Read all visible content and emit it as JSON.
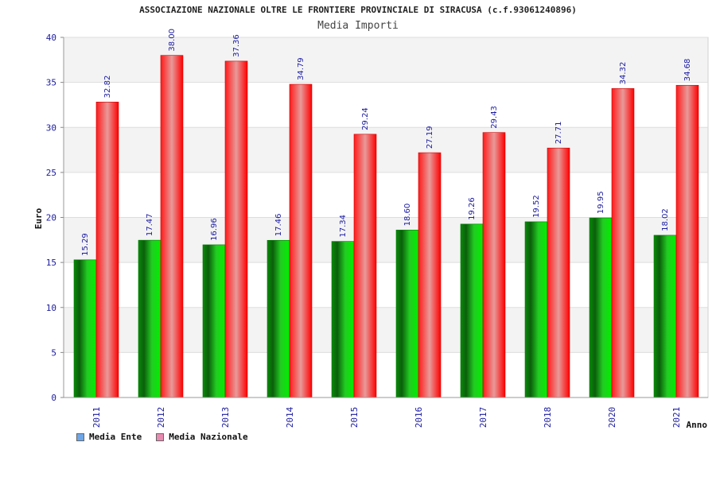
{
  "chart_data": {
    "type": "bar",
    "title": "ASSOCIAZIONE NAZIONALE OLTRE LE FRONTIERE PROVINCIALE DI SIRACUSA (c.f.93061240896)",
    "subtitle": "Media Importi",
    "xlabel": "Anno",
    "ylabel": "Euro",
    "ylim": [
      0,
      40
    ],
    "yticks": [
      0,
      5,
      10,
      15,
      20,
      25,
      30,
      35,
      40
    ],
    "categories": [
      "2011",
      "2012",
      "2013",
      "2014",
      "2015",
      "2016",
      "2017",
      "2018",
      "2020",
      "2021"
    ],
    "series": [
      {
        "name": "Media Ente",
        "values": [
          15.29,
          17.47,
          16.96,
          17.46,
          17.34,
          18.6,
          19.26,
          19.52,
          19.95,
          18.02
        ],
        "labels": [
          "15.29",
          "17.47",
          "16.96",
          "17.46",
          "17.34",
          "18.60",
          "19.26",
          "19.52",
          "19.95",
          "18.02"
        ]
      },
      {
        "name": "Media Nazionale",
        "values": [
          32.82,
          38.0,
          37.36,
          34.79,
          29.24,
          27.19,
          29.43,
          27.71,
          34.32,
          34.68
        ],
        "labels": [
          "32.82",
          "38.00",
          "37.36",
          "34.79",
          "29.24",
          "27.19",
          "29.43",
          "27.71",
          "34.32",
          "34.68"
        ]
      }
    ],
    "legend": [
      {
        "name": "Media Ente",
        "color": "#6ea6e8"
      },
      {
        "name": "Media Nazionale",
        "color": "#e88ab0"
      }
    ],
    "grid": true,
    "legend_position": "bottom-left"
  }
}
